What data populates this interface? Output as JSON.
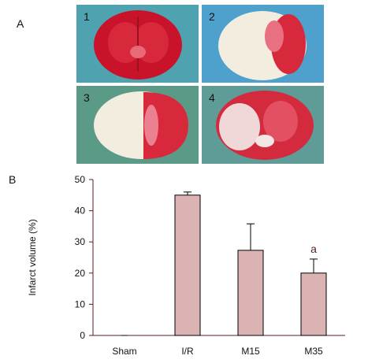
{
  "figure": {
    "panel_a_label": "A",
    "panel_b_label": "B"
  },
  "photos": [
    {
      "number": "1",
      "background": "#4fa3b1",
      "description_icon": "brain-section-stained-red"
    },
    {
      "number": "2",
      "background": "#4ea0cd",
      "description_icon": "brain-section-pale-infarct"
    },
    {
      "number": "3",
      "background": "#5c9a88",
      "description_icon": "brain-section-half-pale"
    },
    {
      "number": "4",
      "background": "#5f9c98",
      "description_icon": "brain-section-partial-pale"
    }
  ],
  "chart_data": {
    "type": "bar",
    "categories": [
      "Sham",
      "I/R",
      "M15",
      "M35"
    ],
    "values": [
      0,
      45,
      27.3,
      20
    ],
    "errors": [
      0,
      1,
      8.5,
      4.5
    ],
    "annotations": [
      "",
      "",
      "",
      "a"
    ],
    "ylabel": "Infarct volume (%)",
    "xlabel": "",
    "ylim": [
      0,
      50
    ],
    "yticks": [
      0,
      10,
      20,
      30,
      40,
      50
    ],
    "bar_color": "#dbb3b3",
    "axis_color": "#5a1e1e",
    "grid": false
  }
}
